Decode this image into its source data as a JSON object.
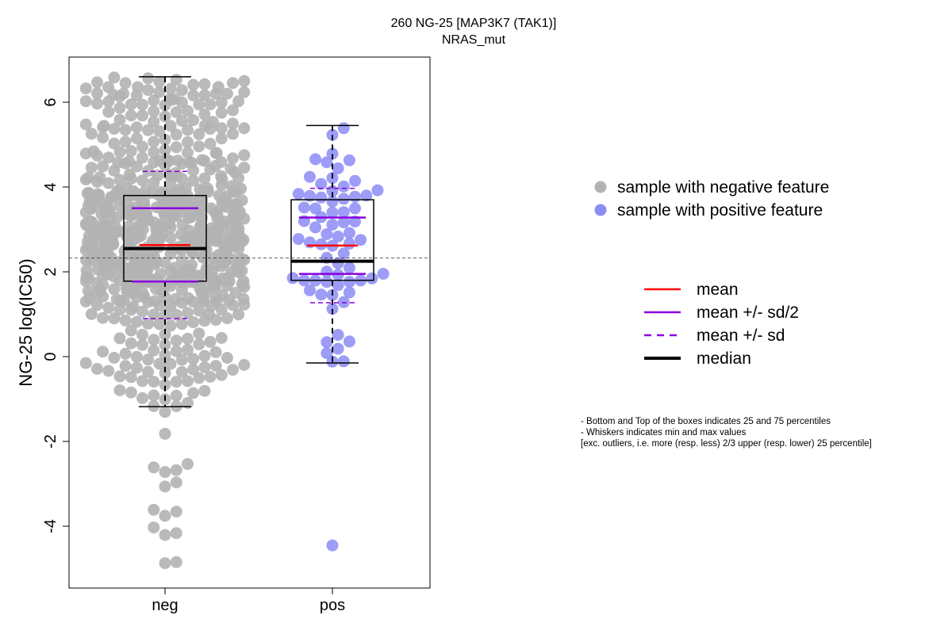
{
  "title_line1": "260 NG-25 [MAP3K7 (TAK1)]",
  "title_line2": "NRAS_mut",
  "colors": {
    "neg_point": "#b3b3b3",
    "pos_point": "#8c8cf6",
    "mean": "#ff0000",
    "sd": "#8800dd",
    "median": "#000000"
  },
  "chart_data": {
    "type": "box-swarm",
    "xlabel": "",
    "ylabel": "NG-25 log(IC50)",
    "ylim": [
      -5.4,
      7.0
    ],
    "yticks": [
      "-4",
      "-2",
      "0",
      "2",
      "4",
      "6"
    ],
    "reference_line_y": 2.33,
    "groups": [
      {
        "name": "neg",
        "q1": 1.78,
        "median": 2.55,
        "q3": 3.8,
        "whisker_low": -1.18,
        "whisker_high": 6.6,
        "mean": 2.63,
        "mean_minus_half_sd": 1.77,
        "mean_plus_half_sd": 3.5,
        "mean_minus_sd": 0.9,
        "mean_plus_sd": 4.37,
        "n_approx": 700
      },
      {
        "name": "pos",
        "q1": 1.8,
        "median": 2.25,
        "q3": 3.7,
        "whisker_low": -0.15,
        "whisker_high": 5.45,
        "mean": 2.62,
        "mean_minus_half_sd": 1.95,
        "mean_plus_half_sd": 3.28,
        "mean_minus_sd": 1.27,
        "mean_plus_sd": 3.97,
        "n_approx": 70
      }
    ],
    "legend_points": [
      {
        "label": "sample with negative feature",
        "color": "#b3b3b3"
      },
      {
        "label": "sample with positive feature",
        "color": "#8c8cf6"
      }
    ],
    "legend_lines": [
      {
        "label": "mean",
        "color": "#ff0000",
        "style": "solid"
      },
      {
        "label": "mean +/- sd/2",
        "color": "#8800dd",
        "style": "solid"
      },
      {
        "label": "mean +/- sd",
        "color": "#8800dd",
        "style": "dashed"
      },
      {
        "label": "median",
        "color": "#000000",
        "style": "thick"
      }
    ],
    "notes": [
      "- Bottom and Top of the boxes indicates 25 and 75 percentiles",
      "- Whiskers indicates min and max values",
      "[exc. outliers, i.e. more (resp. less) 2/3 upper (resp. lower) 25 percentile]"
    ]
  }
}
